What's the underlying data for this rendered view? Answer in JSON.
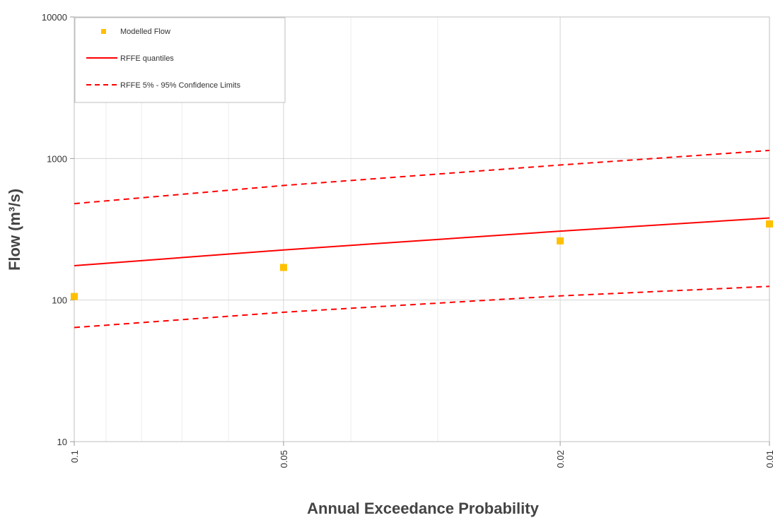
{
  "chart_data": {
    "type": "scatter",
    "title": "",
    "xlabel": "Annual Exceedance Probability",
    "ylabel": "Flow (m³/s)",
    "x_scale": "log-reciprocal",
    "y_scale": "log",
    "xlim": [
      0.1,
      0.01
    ],
    "ylim": [
      10,
      10000
    ],
    "x_ticks": [
      {
        "value": 0.1,
        "label": "0.1"
      },
      {
        "value": 0.05,
        "label": "0.05"
      },
      {
        "value": 0.02,
        "label": "0.02"
      },
      {
        "value": 0.01,
        "label": "0.01"
      }
    ],
    "x_minor_ticks": [
      0.09,
      0.08,
      0.07,
      0.06,
      0.04,
      0.03
    ],
    "y_ticks": [
      {
        "value": 10,
        "label": "10"
      },
      {
        "value": 100,
        "label": "100"
      },
      {
        "value": 1000,
        "label": "1000"
      },
      {
        "value": 10000,
        "label": "10000"
      }
    ],
    "grid": true,
    "legend_position": "top-left",
    "series": [
      {
        "name": "Modelled Flow",
        "kind": "markers",
        "color": "#ffc000",
        "x": [
          0.1,
          0.05,
          0.02,
          0.01
        ],
        "y": [
          106,
          170,
          262,
          345
        ]
      },
      {
        "name": "RFFE quantiles",
        "kind": "line",
        "color": "#ff0000",
        "x": [
          0.1,
          0.05,
          0.02,
          0.01
        ],
        "y": [
          175,
          226,
          307,
          380
        ]
      },
      {
        "name": "RFFE 5% - 95% Confidence Limits",
        "kind": "dashed-line",
        "color": "#ff0000",
        "x": [
          0.1,
          0.05,
          0.02,
          0.01
        ],
        "y": [
          480,
          645,
          900,
          1140
        ]
      },
      {
        "name": "",
        "kind": "dashed-line",
        "color": "#ff0000",
        "x": [
          0.1,
          0.05,
          0.02,
          0.01
        ],
        "y": [
          64,
          82,
          107,
          125
        ]
      }
    ]
  }
}
